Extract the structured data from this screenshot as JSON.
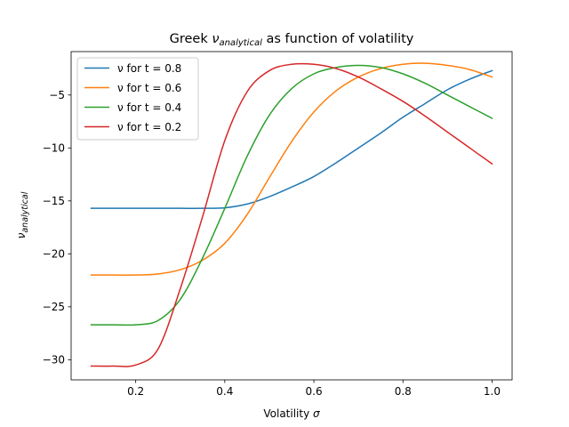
{
  "chart_data": {
    "type": "line",
    "title": {
      "prefix": "Greek ",
      "symbol": "ν",
      "subscript": "analytical",
      "suffix": " as function of volatility"
    },
    "xlabel": {
      "text": "Volatility ",
      "symbol": "σ"
    },
    "ylabel": {
      "symbol": "ν",
      "subscript": "analytical"
    },
    "xlim": [
      0.055,
      1.045
    ],
    "ylim": [
      -31.9,
      -0.9
    ],
    "xticks": [
      0.2,
      0.4,
      0.6,
      0.8,
      1.0
    ],
    "xtick_labels": [
      "0.2",
      "0.4",
      "0.6",
      "0.8",
      "1.0"
    ],
    "yticks": [
      -30,
      -25,
      -20,
      -15,
      -10,
      -5
    ],
    "ytick_labels": [
      "−30",
      "−25",
      "−20",
      "−15",
      "−10",
      "−5"
    ],
    "grid": false,
    "legend_position": "top-left",
    "series": [
      {
        "name": "ν for t = 0.8",
        "color": "#1f77b4",
        "x": [
          0.1,
          0.15,
          0.2,
          0.25,
          0.3,
          0.35,
          0.4,
          0.45,
          0.5,
          0.55,
          0.6,
          0.65,
          0.7,
          0.75,
          0.8,
          0.85,
          0.9,
          0.95,
          1.0
        ],
        "y": [
          -15.7,
          -15.7,
          -15.7,
          -15.7,
          -15.7,
          -15.7,
          -15.65,
          -15.3,
          -14.6,
          -13.7,
          -12.7,
          -11.4,
          -10.0,
          -8.6,
          -7.1,
          -5.8,
          -4.5,
          -3.5,
          -2.7
        ]
      },
      {
        "name": "ν for t = 0.6",
        "color": "#ff7f0e",
        "x": [
          0.1,
          0.15,
          0.2,
          0.25,
          0.3,
          0.35,
          0.4,
          0.45,
          0.5,
          0.55,
          0.6,
          0.65,
          0.7,
          0.75,
          0.8,
          0.85,
          0.9,
          0.95,
          1.0
        ],
        "y": [
          -22.0,
          -22.0,
          -22.0,
          -21.9,
          -21.5,
          -20.6,
          -19.0,
          -16.3,
          -12.8,
          -9.4,
          -6.6,
          -4.6,
          -3.3,
          -2.5,
          -2.1,
          -2.0,
          -2.2,
          -2.6,
          -3.3
        ]
      },
      {
        "name": "ν for t = 0.4",
        "color": "#2ca02c",
        "x": [
          0.1,
          0.15,
          0.2,
          0.25,
          0.3,
          0.35,
          0.4,
          0.45,
          0.5,
          0.55,
          0.6,
          0.65,
          0.7,
          0.75,
          0.8,
          0.85,
          0.9,
          0.95,
          1.0
        ],
        "y": [
          -26.7,
          -26.7,
          -26.7,
          -26.3,
          -24.3,
          -20.4,
          -15.7,
          -10.8,
          -6.9,
          -4.4,
          -3.0,
          -2.4,
          -2.2,
          -2.4,
          -3.0,
          -3.9,
          -5.0,
          -6.1,
          -7.2
        ]
      },
      {
        "name": "ν for t = 0.2",
        "color": "#d62728",
        "x": [
          0.1,
          0.15,
          0.2,
          0.25,
          0.3,
          0.35,
          0.4,
          0.45,
          0.5,
          0.55,
          0.6,
          0.65,
          0.7,
          0.75,
          0.8,
          0.85,
          0.9,
          0.95,
          1.0
        ],
        "y": [
          -30.6,
          -30.6,
          -30.5,
          -29.0,
          -23.3,
          -16.5,
          -9.3,
          -4.7,
          -2.7,
          -2.1,
          -2.1,
          -2.5,
          -3.3,
          -4.4,
          -5.6,
          -7.0,
          -8.5,
          -10.0,
          -11.5
        ]
      }
    ]
  }
}
